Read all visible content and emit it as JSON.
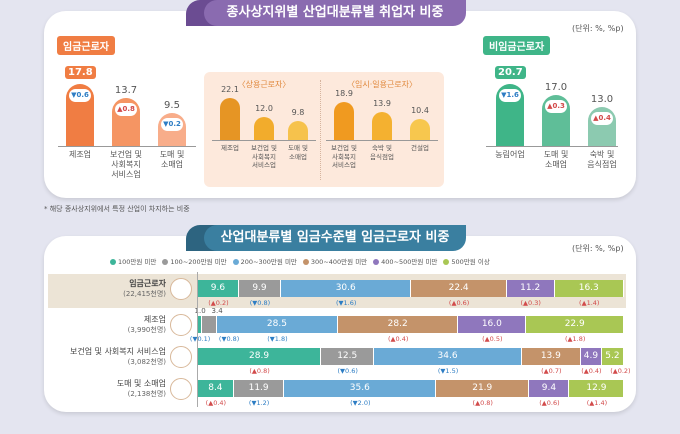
{
  "top_panel": {
    "title": "종사상지위별 산업대분류별 취업자 비중",
    "unit": "(단위: %, %p)",
    "footnote": "* 해당 종사상지위에서 특정 산업이 차지하는 비중"
  },
  "bottom_panel": {
    "title": "산업대분류별 임금수준별 임금근로자 비중",
    "unit": "(단위: %, %p)"
  },
  "chart_data": [
    {
      "type": "bar",
      "title": "임금근로자",
      "color": "#f07d43",
      "categories": [
        "제조업",
        "보건업 및 사회복지 서비스업",
        "도매 및 소매업"
      ],
      "values": [
        17.8,
        13.7,
        9.5
      ],
      "changes": [
        {
          "value": "0.6",
          "direction": "down"
        },
        {
          "value": "0.8",
          "direction": "up"
        },
        {
          "value": "0.2",
          "direction": "down"
        }
      ]
    },
    {
      "type": "bar",
      "title": "〈상용근로자〉",
      "color": "#f0a030",
      "categories": [
        "제조업",
        "보건업 및 사회복지 서비스업",
        "도매 및 소매업"
      ],
      "values": [
        22.1,
        12.0,
        9.8
      ]
    },
    {
      "type": "bar",
      "title": "〈임시·일용근로자〉",
      "color": "#f3b33c",
      "categories": [
        "보건업 및 사회복지 서비스업",
        "숙박 및 음식점업",
        "건설업"
      ],
      "values": [
        18.9,
        13.9,
        10.4
      ]
    },
    {
      "type": "bar",
      "title": "비임금근로자",
      "color": "#3fb588",
      "categories": [
        "농림어업",
        "도매 및 소매업",
        "숙박 및 음식점업"
      ],
      "values": [
        20.7,
        17.0,
        13.0
      ],
      "changes": [
        {
          "value": "1.6",
          "direction": "down"
        },
        {
          "value": "0.3",
          "direction": "up"
        },
        {
          "value": "0.4",
          "direction": "up"
        }
      ]
    },
    {
      "type": "bar",
      "subtype": "stacked-horizontal-100",
      "title": "산업대분류별 임금수준별 임금근로자 비중",
      "legend": [
        "100만원 미만",
        "100~200만원 미만",
        "200~300만원 미만",
        "300~400만원 미만",
        "400~500만원 미만",
        "500만원 이상"
      ],
      "colors": [
        "#3db59a",
        "#9a9a9a",
        "#6aaad6",
        "#c4936a",
        "#8f77bd",
        "#a9c754"
      ],
      "legend_position": "top",
      "rows": [
        {
          "label": "임금근로자",
          "count": "(22,415천명)",
          "highlight": true,
          "values": [
            9.6,
            9.9,
            30.6,
            22.4,
            11.2,
            16.3
          ],
          "labels": [
            "9.6",
            "9.9",
            "30.6",
            "22.4",
            "11.2",
            "16.3"
          ],
          "changes": [
            {
              "value": "0.2",
              "direction": "up"
            },
            {
              "value": "0.8",
              "direction": "down"
            },
            {
              "value": "1.6",
              "direction": "down"
            },
            {
              "value": "0.6",
              "direction": "up"
            },
            {
              "value": "0.3",
              "direction": "up"
            },
            {
              "value": "1.4",
              "direction": "up"
            }
          ]
        },
        {
          "label": "제조업",
          "count": "(3,990천명)",
          "highlight": false,
          "values": [
            1.0,
            3.4,
            28.5,
            28.2,
            16.0,
            22.9
          ],
          "labels": [
            "1.0",
            "3.4",
            "28.5",
            "28.2",
            "16.0",
            "22.9"
          ],
          "changes": [
            {
              "value": "0.1",
              "direction": "down"
            },
            {
              "value": "0.8",
              "direction": "down"
            },
            {
              "value": "1.8",
              "direction": "down"
            },
            {
              "value": "0.4",
              "direction": "up"
            },
            {
              "value": "0.5",
              "direction": "up"
            },
            {
              "value": "1.8",
              "direction": "up"
            }
          ]
        },
        {
          "label": "보건업 및 사회복지 서비스업",
          "count": "(3,082천명)",
          "highlight": false,
          "values": [
            28.9,
            12.5,
            34.6,
            13.9,
            4.9,
            5.2
          ],
          "labels": [
            "28.9",
            "12.5",
            "34.6",
            "13.9",
            "4.9",
            "5.2"
          ],
          "changes": [
            {
              "value": "0.8",
              "direction": "up"
            },
            {
              "value": "0.6",
              "direction": "down"
            },
            {
              "value": "1.5",
              "direction": "down"
            },
            {
              "value": "0.7",
              "direction": "up"
            },
            {
              "value": "0.4",
              "direction": "up"
            },
            {
              "value": "0.2",
              "direction": "up"
            }
          ]
        },
        {
          "label": "도매 및 소매업",
          "count": "(2,138천명)",
          "highlight": false,
          "values": [
            8.4,
            11.9,
            35.6,
            21.9,
            9.4,
            12.9
          ],
          "labels": [
            "8.4",
            "11.9",
            "35.6",
            "21.9",
            "9.4",
            "12.9"
          ],
          "changes": [
            {
              "value": "0.4",
              "direction": "up"
            },
            {
              "value": "1.2",
              "direction": "down"
            },
            {
              "value": "2.0",
              "direction": "down"
            },
            {
              "value": "0.8",
              "direction": "up"
            },
            {
              "value": "0.6",
              "direction": "up"
            },
            {
              "value": "1.4",
              "direction": "up"
            }
          ]
        }
      ]
    }
  ]
}
